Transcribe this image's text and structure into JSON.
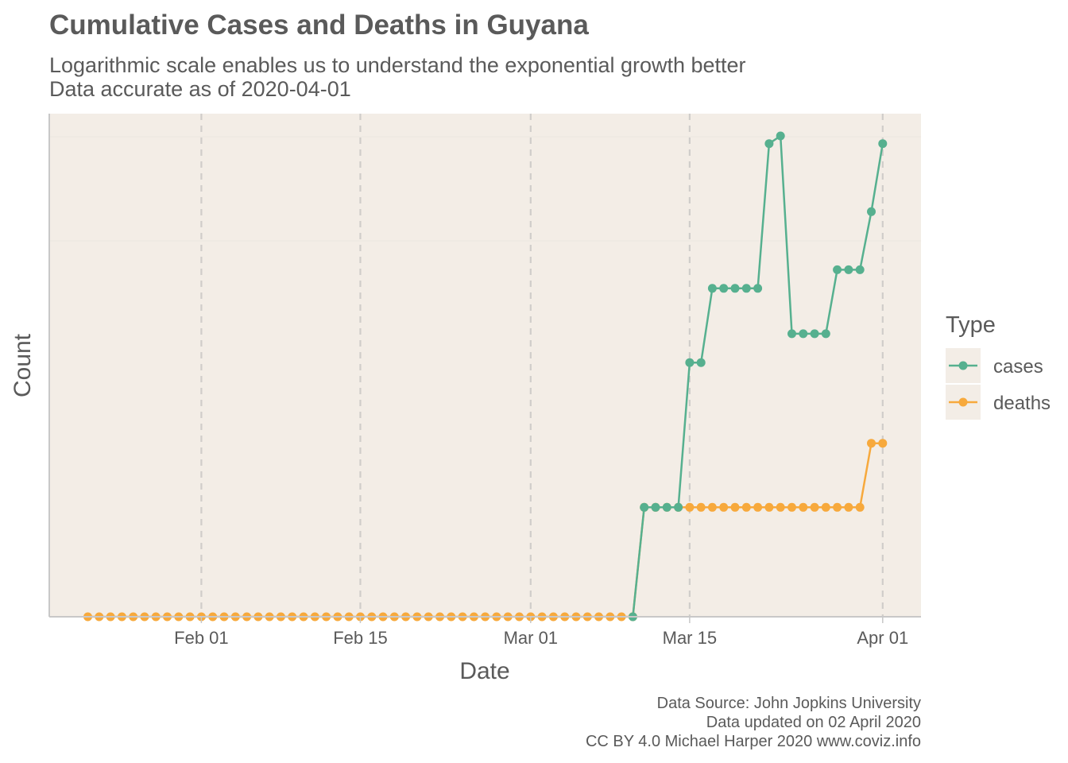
{
  "chart_data": {
    "type": "line",
    "title": "Cumulative Cases and Deaths in Guyana",
    "subtitle_lines": [
      "Logarithmic scale enables us to understand the exponential growth better",
      "Data accurate as of 2020-04-01"
    ],
    "xlabel": "Date",
    "ylabel": "Count",
    "x_scale": "date",
    "y_scale": "log1p",
    "y_ticks_shown": false,
    "grid": "vertical dashed major lines",
    "x_ticks": [
      {
        "date": "2020-02-01",
        "label": "Feb 01"
      },
      {
        "date": "2020-02-15",
        "label": "Feb 15"
      },
      {
        "date": "2020-03-01",
        "label": "Mar 01"
      },
      {
        "date": "2020-03-15",
        "label": "Mar 15"
      },
      {
        "date": "2020-04-01",
        "label": "Apr 01"
      }
    ],
    "x_range": [
      "2020-01-22",
      "2020-04-01"
    ],
    "legend": {
      "title": "Type",
      "position": "right"
    },
    "series": [
      {
        "name": "cases",
        "color": "#56b08f",
        "points": [
          {
            "date": "2020-03-10",
            "value": 0
          },
          {
            "date": "2020-03-11",
            "value": 1
          },
          {
            "date": "2020-03-12",
            "value": 1
          },
          {
            "date": "2020-03-13",
            "value": 1
          },
          {
            "date": "2020-03-14",
            "value": 1
          },
          {
            "date": "2020-03-15",
            "value": 4
          },
          {
            "date": "2020-03-16",
            "value": 4
          },
          {
            "date": "2020-03-17",
            "value": 7
          },
          {
            "date": "2020-03-18",
            "value": 7
          },
          {
            "date": "2020-03-19",
            "value": 7
          },
          {
            "date": "2020-03-20",
            "value": 7
          },
          {
            "date": "2020-03-21",
            "value": 7
          },
          {
            "date": "2020-03-22",
            "value": 19
          },
          {
            "date": "2020-03-23",
            "value": 20
          },
          {
            "date": "2020-03-24",
            "value": 5
          },
          {
            "date": "2020-03-25",
            "value": 5
          },
          {
            "date": "2020-03-26",
            "value": 5
          },
          {
            "date": "2020-03-27",
            "value": 5
          },
          {
            "date": "2020-03-28",
            "value": 8
          },
          {
            "date": "2020-03-29",
            "value": 8
          },
          {
            "date": "2020-03-30",
            "value": 8
          },
          {
            "date": "2020-03-31",
            "value": 12
          },
          {
            "date": "2020-04-01",
            "value": 19
          }
        ]
      },
      {
        "name": "deaths",
        "color": "#f7a93c",
        "points": [
          {
            "date": "2020-01-22",
            "value": 0
          },
          {
            "date": "2020-01-23",
            "value": 0
          },
          {
            "date": "2020-01-24",
            "value": 0
          },
          {
            "date": "2020-01-25",
            "value": 0
          },
          {
            "date": "2020-01-26",
            "value": 0
          },
          {
            "date": "2020-01-27",
            "value": 0
          },
          {
            "date": "2020-01-28",
            "value": 0
          },
          {
            "date": "2020-01-29",
            "value": 0
          },
          {
            "date": "2020-01-30",
            "value": 0
          },
          {
            "date": "2020-01-31",
            "value": 0
          },
          {
            "date": "2020-02-01",
            "value": 0
          },
          {
            "date": "2020-02-02",
            "value": 0
          },
          {
            "date": "2020-02-03",
            "value": 0
          },
          {
            "date": "2020-02-04",
            "value": 0
          },
          {
            "date": "2020-02-05",
            "value": 0
          },
          {
            "date": "2020-02-06",
            "value": 0
          },
          {
            "date": "2020-02-07",
            "value": 0
          },
          {
            "date": "2020-02-08",
            "value": 0
          },
          {
            "date": "2020-02-09",
            "value": 0
          },
          {
            "date": "2020-02-10",
            "value": 0
          },
          {
            "date": "2020-02-11",
            "value": 0
          },
          {
            "date": "2020-02-12",
            "value": 0
          },
          {
            "date": "2020-02-13",
            "value": 0
          },
          {
            "date": "2020-02-14",
            "value": 0
          },
          {
            "date": "2020-02-15",
            "value": 0
          },
          {
            "date": "2020-02-16",
            "value": 0
          },
          {
            "date": "2020-02-17",
            "value": 0
          },
          {
            "date": "2020-02-18",
            "value": 0
          },
          {
            "date": "2020-02-19",
            "value": 0
          },
          {
            "date": "2020-02-20",
            "value": 0
          },
          {
            "date": "2020-02-21",
            "value": 0
          },
          {
            "date": "2020-02-22",
            "value": 0
          },
          {
            "date": "2020-02-23",
            "value": 0
          },
          {
            "date": "2020-02-24",
            "value": 0
          },
          {
            "date": "2020-02-25",
            "value": 0
          },
          {
            "date": "2020-02-26",
            "value": 0
          },
          {
            "date": "2020-02-27",
            "value": 0
          },
          {
            "date": "2020-02-28",
            "value": 0
          },
          {
            "date": "2020-02-29",
            "value": 0
          },
          {
            "date": "2020-03-01",
            "value": 0
          },
          {
            "date": "2020-03-02",
            "value": 0
          },
          {
            "date": "2020-03-03",
            "value": 0
          },
          {
            "date": "2020-03-04",
            "value": 0
          },
          {
            "date": "2020-03-05",
            "value": 0
          },
          {
            "date": "2020-03-06",
            "value": 0
          },
          {
            "date": "2020-03-07",
            "value": 0
          },
          {
            "date": "2020-03-08",
            "value": 0
          },
          {
            "date": "2020-03-09",
            "value": 0
          },
          {
            "date": "2020-03-10",
            "value": 0
          },
          {
            "date": "2020-03-11",
            "value": 1
          },
          {
            "date": "2020-03-12",
            "value": 1
          },
          {
            "date": "2020-03-13",
            "value": 1
          },
          {
            "date": "2020-03-14",
            "value": 1
          },
          {
            "date": "2020-03-15",
            "value": 1
          },
          {
            "date": "2020-03-16",
            "value": 1
          },
          {
            "date": "2020-03-17",
            "value": 1
          },
          {
            "date": "2020-03-18",
            "value": 1
          },
          {
            "date": "2020-03-19",
            "value": 1
          },
          {
            "date": "2020-03-20",
            "value": 1
          },
          {
            "date": "2020-03-21",
            "value": 1
          },
          {
            "date": "2020-03-22",
            "value": 1
          },
          {
            "date": "2020-03-23",
            "value": 1
          },
          {
            "date": "2020-03-24",
            "value": 1
          },
          {
            "date": "2020-03-25",
            "value": 1
          },
          {
            "date": "2020-03-26",
            "value": 1
          },
          {
            "date": "2020-03-27",
            "value": 1
          },
          {
            "date": "2020-03-28",
            "value": 1
          },
          {
            "date": "2020-03-29",
            "value": 1
          },
          {
            "date": "2020-03-30",
            "value": 1
          },
          {
            "date": "2020-03-31",
            "value": 2
          },
          {
            "date": "2020-04-01",
            "value": 2
          }
        ]
      }
    ],
    "caption_lines": [
      "Data Source: John Jopkins University",
      "Data updated on 02 April 2020",
      "CC BY 4.0 Michael Harper 2020 www.coviz.info"
    ]
  },
  "colors": {
    "panel_background": "#f3ede6",
    "grid_dashed": "#d0cdca",
    "grid_horizontal": "#ebe6e0",
    "axis_line": "#c8c8c8",
    "text": "#5a5a5a"
  }
}
